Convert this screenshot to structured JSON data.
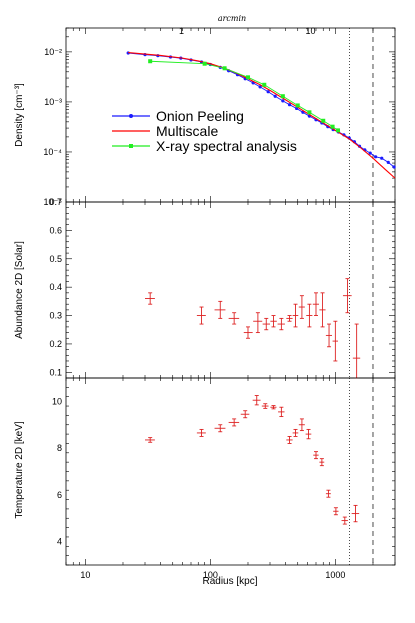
{
  "chart_data": [
    {
      "type": "scatter",
      "panel": "density",
      "top_axis": {
        "label": "arcmin",
        "ticks": [
          1,
          10
        ],
        "tick_labels": [
          "1",
          "10"
        ],
        "scale": "log"
      },
      "xlim": [
        7,
        3000
      ],
      "xscale": "log",
      "ylim": [
        1e-05,
        0.03
      ],
      "yscale": "log",
      "ylabel": "Density [cm⁻³]",
      "y_ticks": [
        1e-05,
        0.0001,
        0.001,
        0.01
      ],
      "y_tick_labels": [
        "10⁻⁵",
        "10⁻⁴",
        "10⁻³",
        "10⁻²"
      ],
      "legend": {
        "placement": "center",
        "entries": [
          "Onion Peeling",
          "Multiscale",
          "X-ray spectral analysis"
        ]
      },
      "colors": {
        "onion": "#1a1aff",
        "multiscale": "#ff0000",
        "xray": "#22ee22"
      },
      "series": [
        {
          "name": "Onion Peeling",
          "style": "line-points",
          "x": [
            22,
            30,
            38,
            48,
            58,
            70,
            85,
            100,
            120,
            140,
            165,
            190,
            220,
            250,
            290,
            330,
            380,
            430,
            490,
            550,
            620,
            700,
            780,
            870,
            960,
            1060,
            1170,
            1290,
            1420,
            1560,
            1720,
            1900,
            2100,
            2350,
            2650,
            2950
          ],
          "y": [
            0.0095,
            0.0088,
            0.0084,
            0.0079,
            0.0075,
            0.0069,
            0.0063,
            0.0056,
            0.0049,
            0.0042,
            0.0035,
            0.0029,
            0.0024,
            0.002,
            0.0016,
            0.0013,
            0.00105,
            0.00088,
            0.00074,
            0.00062,
            0.00052,
            0.00044,
            0.00038,
            0.00032,
            0.00028,
            0.00025,
            0.00022,
            0.00019,
            0.00016,
            0.00013,
            0.00011,
            9.5e-05,
            8e-05,
            7.5e-05,
            6.2e-05,
            5e-05
          ]
        },
        {
          "name": "Multiscale",
          "style": "line",
          "x": [
            22,
            40,
            60,
            80,
            100,
            130,
            160,
            200,
            250,
            300,
            400,
            500,
            650,
            800,
            1000,
            1300,
            1600,
            2000,
            2500,
            3000
          ],
          "y": [
            0.0097,
            0.0085,
            0.0075,
            0.0066,
            0.0058,
            0.0047,
            0.0038,
            0.0029,
            0.0022,
            0.0017,
            0.0011,
            0.00078,
            0.00052,
            0.00038,
            0.00027,
            0.00018,
            0.00012,
            7.5e-05,
            4.5e-05,
            3e-05
          ]
        },
        {
          "name": "X-ray spectral analysis",
          "style": "line-points",
          "x": [
            33,
            90,
            130,
            200,
            270,
            380,
            500,
            620,
            800,
            950,
            1050
          ],
          "y": [
            0.0065,
            0.0058,
            0.0047,
            0.0031,
            0.0022,
            0.0013,
            0.00085,
            0.00062,
            0.00042,
            0.00032,
            0.00027
          ]
        }
      ],
      "reference_lines": [
        {
          "x": 1300,
          "style": "dotted"
        },
        {
          "x": 2000,
          "style": "dashed"
        }
      ]
    },
    {
      "type": "scatter",
      "panel": "abundance",
      "xlim": [
        7,
        3000
      ],
      "xscale": "log",
      "ylim": [
        0.08,
        0.7
      ],
      "ylabel": "Abundance 2D [Solar]",
      "y_ticks": [
        0.1,
        0.2,
        0.3,
        0.4,
        0.5,
        0.6,
        0.7
      ],
      "y_tick_labels": [
        "0.1",
        "0.2",
        "0.3",
        "0.4",
        "0.5",
        "0.6",
        "0.7"
      ],
      "color": "#dd2222",
      "points": [
        {
          "x": 33,
          "y": 0.36,
          "xerr": [
            30,
            36
          ],
          "yerr": [
            0.34,
            0.38
          ]
        },
        {
          "x": 85,
          "y": 0.3,
          "xerr": [
            78,
            92
          ],
          "yerr": [
            0.27,
            0.33
          ]
        },
        {
          "x": 120,
          "y": 0.32,
          "xerr": [
            108,
            132
          ],
          "yerr": [
            0.29,
            0.35
          ]
        },
        {
          "x": 155,
          "y": 0.29,
          "xerr": [
            140,
            170
          ],
          "yerr": [
            0.27,
            0.31
          ]
        },
        {
          "x": 200,
          "y": 0.24,
          "xerr": [
            185,
            218
          ],
          "yerr": [
            0.22,
            0.26
          ]
        },
        {
          "x": 240,
          "y": 0.28,
          "xerr": [
            220,
            260
          ],
          "yerr": [
            0.24,
            0.31
          ]
        },
        {
          "x": 280,
          "y": 0.27,
          "xerr": [
            262,
            300
          ],
          "yerr": [
            0.25,
            0.29
          ]
        },
        {
          "x": 320,
          "y": 0.28,
          "xerr": [
            302,
            340
          ],
          "yerr": [
            0.26,
            0.3
          ]
        },
        {
          "x": 370,
          "y": 0.27,
          "xerr": [
            345,
            395
          ],
          "yerr": [
            0.25,
            0.29
          ]
        },
        {
          "x": 430,
          "y": 0.29,
          "xerr": [
            405,
            455
          ],
          "yerr": [
            0.28,
            0.3
          ]
        },
        {
          "x": 480,
          "y": 0.3,
          "xerr": [
            455,
            505
          ],
          "yerr": [
            0.26,
            0.34
          ]
        },
        {
          "x": 540,
          "y": 0.33,
          "xerr": [
            510,
            570
          ],
          "yerr": [
            0.29,
            0.37
          ]
        },
        {
          "x": 620,
          "y": 0.3,
          "xerr": [
            585,
            655
          ],
          "yerr": [
            0.26,
            0.34
          ]
        },
        {
          "x": 700,
          "y": 0.34,
          "xerr": [
            660,
            740
          ],
          "yerr": [
            0.3,
            0.38
          ]
        },
        {
          "x": 790,
          "y": 0.32,
          "xerr": [
            745,
            835
          ],
          "yerr": [
            0.26,
            0.38
          ]
        },
        {
          "x": 890,
          "y": 0.23,
          "xerr": [
            840,
            940
          ],
          "yerr": [
            0.19,
            0.27
          ]
        },
        {
          "x": 1000,
          "y": 0.21,
          "xerr": [
            950,
            1050
          ],
          "yerr": [
            0.14,
            0.28
          ]
        },
        {
          "x": 1250,
          "y": 0.37,
          "xerr": [
            1150,
            1350
          ],
          "yerr": [
            0.31,
            0.43
          ]
        },
        {
          "x": 1480,
          "y": 0.15,
          "xerr": [
            1380,
            1580
          ],
          "yerr": [
            0.08,
            0.27
          ]
        }
      ],
      "reference_lines": [
        {
          "x": 1300,
          "style": "dotted"
        },
        {
          "x": 2000,
          "style": "dashed"
        }
      ]
    },
    {
      "type": "scatter",
      "panel": "temperature",
      "xlim": [
        7,
        3000
      ],
      "xscale": "log",
      "xlabel": "Radius [kpc]",
      "x_ticks": [
        10,
        100,
        1000
      ],
      "x_tick_labels": [
        "10",
        "100",
        "1000"
      ],
      "ylim": [
        3.0,
        11.0
      ],
      "ylabel": "Temperature 2D [keV]",
      "y_ticks": [
        4,
        6,
        8,
        10
      ],
      "y_tick_labels": [
        "4",
        "6",
        "8",
        "10"
      ],
      "color": "#dd2222",
      "points": [
        {
          "x": 33,
          "y": 8.35,
          "xerr": [
            30,
            36
          ],
          "yerr": [
            8.25,
            8.45
          ]
        },
        {
          "x": 85,
          "y": 8.65,
          "xerr": [
            78,
            92
          ],
          "yerr": [
            8.5,
            8.8
          ]
        },
        {
          "x": 120,
          "y": 8.85,
          "xerr": [
            108,
            132
          ],
          "yerr": [
            8.7,
            9.0
          ]
        },
        {
          "x": 155,
          "y": 9.1,
          "xerr": [
            140,
            170
          ],
          "yerr": [
            8.95,
            9.25
          ]
        },
        {
          "x": 190,
          "y": 9.45,
          "xerr": [
            175,
            205
          ],
          "yerr": [
            9.3,
            9.6
          ]
        },
        {
          "x": 235,
          "y": 10.05,
          "xerr": [
            218,
            252
          ],
          "yerr": [
            9.85,
            10.25
          ]
        },
        {
          "x": 275,
          "y": 9.8,
          "xerr": [
            258,
            292
          ],
          "yerr": [
            9.7,
            9.9
          ]
        },
        {
          "x": 320,
          "y": 9.75,
          "xerr": [
            302,
            338
          ],
          "yerr": [
            9.68,
            9.82
          ]
        },
        {
          "x": 370,
          "y": 9.55,
          "xerr": [
            348,
            392
          ],
          "yerr": [
            9.35,
            9.75
          ]
        },
        {
          "x": 430,
          "y": 8.35,
          "xerr": [
            405,
            455
          ],
          "yerr": [
            8.2,
            8.5
          ]
        },
        {
          "x": 480,
          "y": 8.65,
          "xerr": [
            455,
            505
          ],
          "yerr": [
            8.5,
            8.8
          ]
        },
        {
          "x": 540,
          "y": 9.0,
          "xerr": [
            510,
            570
          ],
          "yerr": [
            8.75,
            9.25
          ]
        },
        {
          "x": 610,
          "y": 8.6,
          "xerr": [
            578,
            642
          ],
          "yerr": [
            8.4,
            8.8
          ]
        },
        {
          "x": 700,
          "y": 7.7,
          "xerr": [
            665,
            735
          ],
          "yerr": [
            7.55,
            7.85
          ]
        },
        {
          "x": 780,
          "y": 7.4,
          "xerr": [
            745,
            815
          ],
          "yerr": [
            7.25,
            7.55
          ]
        },
        {
          "x": 880,
          "y": 6.05,
          "xerr": [
            840,
            920
          ],
          "yerr": [
            5.9,
            6.2
          ]
        },
        {
          "x": 1010,
          "y": 5.3,
          "xerr": [
            960,
            1060
          ],
          "yerr": [
            5.15,
            5.45
          ]
        },
        {
          "x": 1190,
          "y": 4.9,
          "xerr": [
            1120,
            1260
          ],
          "yerr": [
            4.75,
            5.05
          ]
        },
        {
          "x": 1450,
          "y": 5.2,
          "xerr": [
            1350,
            1550
          ],
          "yerr": [
            4.85,
            5.55
          ]
        }
      ],
      "reference_lines": [
        {
          "x": 1300,
          "style": "dotted"
        },
        {
          "x": 2000,
          "style": "dashed"
        }
      ]
    }
  ]
}
